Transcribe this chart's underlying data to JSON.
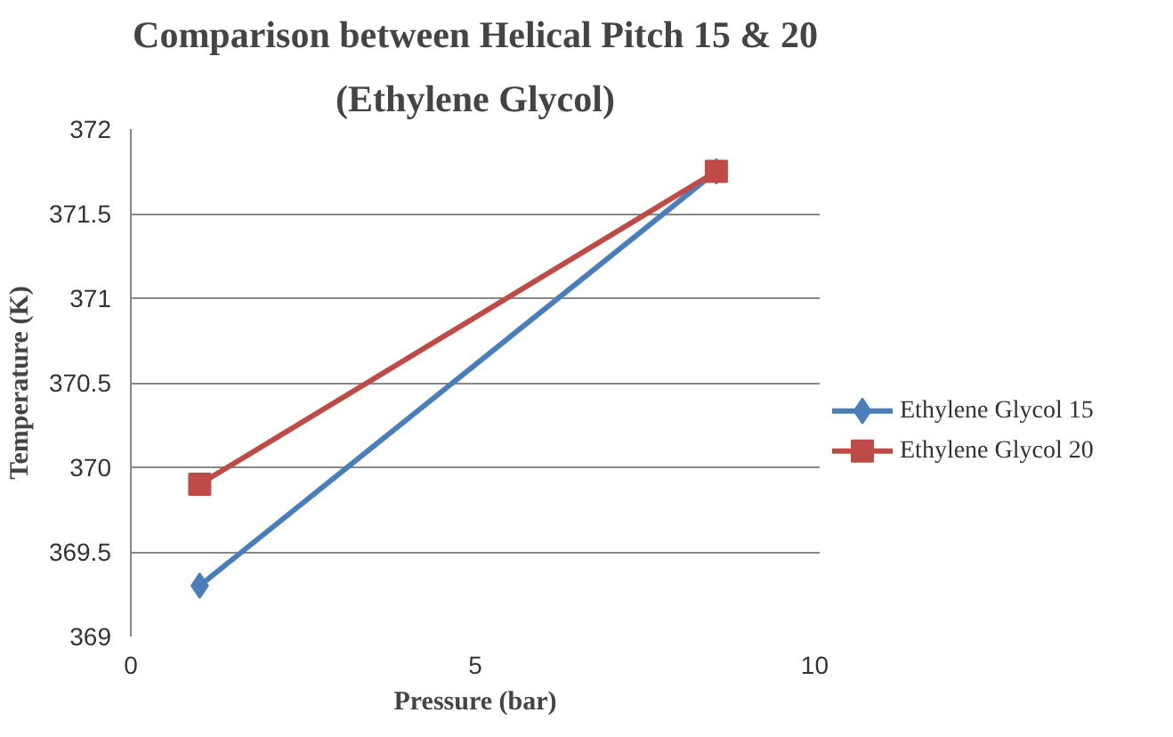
{
  "chart_data": {
    "type": "line",
    "title": "Comparison between Helical Pitch 15 & 20",
    "subtitle": "(Ethylene Glycol)",
    "xlabel": "Pressure (bar)",
    "ylabel": "Temperature (K)",
    "xlim": [
      0,
      10
    ],
    "xticks": [
      0,
      5,
      10
    ],
    "ylim": [
      369,
      372
    ],
    "yticks": [
      369,
      369.5,
      370,
      370.5,
      371,
      371.5,
      372
    ],
    "grid": "y",
    "legend": "right",
    "x": [
      1,
      8.5
    ],
    "series": [
      {
        "name": "Ethylene Glycol 15",
        "color": "#4a7ebb",
        "values": [
          369.3,
          371.75
        ],
        "marker": "diamond"
      },
      {
        "name": "Ethylene Glycol 20",
        "color": "#be4b48",
        "values": [
          369.9,
          371.75
        ],
        "marker": "square"
      }
    ]
  }
}
